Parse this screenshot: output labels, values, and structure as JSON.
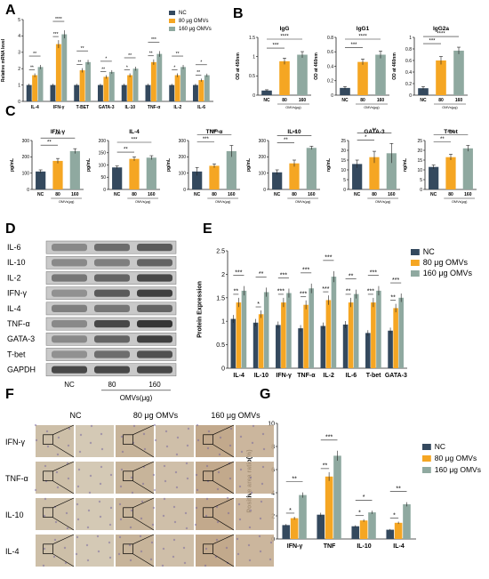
{
  "panels": [
    "A",
    "B",
    "C",
    "D",
    "E",
    "F",
    "G"
  ],
  "colors": {
    "nc": "#34495e",
    "d80": "#f5a623",
    "d160": "#8fa9a0",
    "axis": "#222222"
  },
  "chart_data": [
    {
      "id": "A",
      "type": "bar",
      "ylabel": "Relative mRNA level",
      "ylim": [
        0,
        5
      ],
      "yticks": [
        0,
        1,
        2,
        3,
        4,
        5
      ],
      "categories": [
        "IL-4",
        "IFN-γ",
        "T-BET",
        "GATA-3",
        "IL-10",
        "TNF-α",
        "IL-2",
        "IL-6"
      ],
      "series": [
        {
          "name": "NC",
          "values": [
            1.0,
            1.0,
            1.0,
            1.0,
            1.0,
            1.0,
            1.0,
            1.0
          ]
        },
        {
          "name": "80 μg OMVs",
          "values": [
            1.6,
            3.5,
            1.9,
            1.5,
            1.6,
            2.4,
            1.6,
            1.3
          ]
        },
        {
          "name": "160 μg OMVs",
          "values": [
            2.1,
            4.1,
            2.4,
            1.8,
            2.0,
            2.9,
            2.1,
            1.6
          ]
        }
      ],
      "sig_top": [
        "**",
        "****",
        "**",
        "*",
        "**",
        "***",
        "**",
        "*"
      ],
      "sig_mid": [
        "**",
        "***",
        "**",
        "**",
        "*",
        "**",
        "*",
        "**"
      ],
      "legend_position": "top-right"
    },
    {
      "id": "B1",
      "type": "bar",
      "title": "IgG",
      "ylabel": "OD at 450nm",
      "ylim": [
        0,
        1.5
      ],
      "yticks": [
        0.0,
        0.5,
        1.0,
        1.5
      ],
      "categories": [
        "NC",
        "80",
        "160"
      ],
      "group_label": "OMVs(μg)",
      "values": [
        0.12,
        0.88,
        1.05
      ],
      "errors": [
        0.02,
        0.08,
        0.08
      ],
      "sig": [
        {
          "a": 0,
          "b": 1,
          "s": "***"
        },
        {
          "a": 0,
          "b": 2,
          "s": "****"
        }
      ]
    },
    {
      "id": "B2",
      "type": "bar",
      "title": "IgG1",
      "ylabel": "OD at 460nm",
      "ylim": [
        0,
        0.8
      ],
      "yticks": [
        0.0,
        0.2,
        0.4,
        0.6,
        0.8
      ],
      "categories": [
        "NC",
        "80",
        "160"
      ],
      "group_label": "OMVs(μg)",
      "values": [
        0.1,
        0.46,
        0.56
      ],
      "errors": [
        0.02,
        0.04,
        0.05
      ],
      "sig": [
        {
          "a": 0,
          "b": 1,
          "s": "***"
        },
        {
          "a": 0,
          "b": 2,
          "s": "****"
        }
      ]
    },
    {
      "id": "B3",
      "type": "bar",
      "title": "IgG2a",
      "ylabel": "OD at 460nm",
      "ylim": [
        0,
        1.0
      ],
      "yticks": [
        0.0,
        0.2,
        0.4,
        0.6,
        0.8,
        1.0
      ],
      "categories": [
        "NC",
        "80",
        "160"
      ],
      "group_label": "OMVs(μg)",
      "values": [
        0.12,
        0.6,
        0.77
      ],
      "errors": [
        0.03,
        0.07,
        0.06
      ],
      "sig": [
        {
          "a": 0,
          "b": 1,
          "s": "***"
        },
        {
          "a": 0,
          "b": 2,
          "s": "****"
        }
      ]
    },
    {
      "id": "C1",
      "type": "bar",
      "title": "IFN-γ",
      "ylabel": "pg/mL",
      "ylim": [
        0,
        300
      ],
      "yticks": [
        0,
        100,
        200,
        300
      ],
      "categories": [
        "NC",
        "80",
        "160"
      ],
      "group_label": "OMVs(μg)",
      "values": [
        110,
        175,
        235
      ],
      "errors": [
        10,
        15,
        15
      ],
      "sig": [
        {
          "a": 0,
          "b": 1,
          "s": "**"
        },
        {
          "a": 0,
          "b": 2,
          "s": "***"
        }
      ]
    },
    {
      "id": "C2",
      "type": "bar",
      "title": "IL-4",
      "ylabel": "pg/mL",
      "ylim": [
        0,
        200
      ],
      "yticks": [
        0,
        50,
        100,
        150,
        200
      ],
      "categories": [
        "NC",
        "80",
        "160"
      ],
      "group_label": "OMVs(μg)",
      "values": [
        90,
        125,
        130
      ],
      "errors": [
        6,
        8,
        8
      ],
      "sig": [
        {
          "a": 0,
          "b": 1,
          "s": "**"
        },
        {
          "a": 0,
          "b": 2,
          "s": "***"
        }
      ]
    },
    {
      "id": "C3",
      "type": "bar",
      "title": "TNF-α",
      "ylabel": "pg/mL",
      "ylim": [
        0,
        300
      ],
      "yticks": [
        0,
        100,
        200,
        300
      ],
      "categories": [
        "NC",
        "80",
        "160"
      ],
      "group_label": "OMVs(μg)",
      "values": [
        110,
        145,
        235
      ],
      "errors": [
        25,
        12,
        35
      ],
      "sig": [
        {
          "a": 0,
          "b": 1,
          "s": "***"
        },
        {
          "a": 0,
          "b": 2,
          "s": "****"
        }
      ]
    },
    {
      "id": "C4",
      "type": "bar",
      "title": "IL-10",
      "ylabel": "pg/mL",
      "ylim": [
        0,
        300
      ],
      "yticks": [
        0,
        100,
        200,
        300
      ],
      "categories": [
        "NC",
        "80",
        "160"
      ],
      "group_label": "OMVs(μg)",
      "values": [
        105,
        160,
        255
      ],
      "errors": [
        15,
        20,
        10
      ],
      "sig": [
        {
          "a": 0,
          "b": 1,
          "s": "**"
        },
        {
          "a": 0,
          "b": 2,
          "s": "**"
        }
      ]
    },
    {
      "id": "C5",
      "type": "bar",
      "title": "GATA-3",
      "ylabel": "ng/mL",
      "ylim": [
        0,
        25
      ],
      "yticks": [
        0,
        5,
        10,
        15,
        20,
        25
      ],
      "categories": [
        "NC",
        "80",
        "160"
      ],
      "group_label": "OMVs(μg)",
      "values": [
        13,
        16.5,
        18.5
      ],
      "errors": [
        2,
        3,
        5
      ],
      "sig": [
        {
          "a": 0,
          "b": 1,
          "s": "*"
        },
        {
          "a": 0,
          "b": 2,
          "s": "**"
        }
      ]
    },
    {
      "id": "C6",
      "type": "bar",
      "title": "T-bet",
      "ylabel": "ng/mL",
      "ylim": [
        0,
        25
      ],
      "yticks": [
        0,
        5,
        10,
        15,
        20,
        25
      ],
      "categories": [
        "NC",
        "80",
        "160"
      ],
      "group_label": "OMVs(μg)",
      "values": [
        11.5,
        16.5,
        21
      ],
      "errors": [
        1,
        1.5,
        1.5
      ],
      "sig": [
        {
          "a": 0,
          "b": 1,
          "s": "**"
        },
        {
          "a": 0,
          "b": 2,
          "s": "***"
        }
      ]
    },
    {
      "id": "E",
      "type": "bar",
      "ylabel": "Protein Expression",
      "ylim": [
        0,
        2.5
      ],
      "yticks": [
        0.0,
        0.5,
        1.0,
        1.5,
        2.0,
        2.5
      ],
      "categories": [
        "IL-4",
        "IL-10",
        "IFN-γ",
        "TNF-α",
        "IL-2",
        "IL-6",
        "T-bet",
        "GATA-3"
      ],
      "series": [
        {
          "name": "NC",
          "values": [
            1.05,
            0.97,
            0.92,
            0.85,
            0.9,
            0.93,
            0.75,
            0.8
          ]
        },
        {
          "name": "80 μg OMVs",
          "values": [
            1.4,
            1.15,
            1.4,
            1.35,
            1.45,
            1.4,
            1.4,
            1.28
          ]
        },
        {
          "name": "160 μg OMVs",
          "values": [
            1.65,
            1.62,
            1.6,
            1.7,
            1.95,
            1.58,
            1.65,
            1.5
          ]
        }
      ],
      "sig_top": [
        "***",
        "**",
        "***",
        "***",
        "***",
        "**",
        "***",
        "***"
      ],
      "sig_mid": [
        "**",
        "*",
        "***",
        "***",
        "***",
        "**",
        "***",
        "**"
      ],
      "sig_low": [
        "",
        "",
        "**",
        "**",
        "**",
        "",
        "***",
        ""
      ],
      "legend_position": "top-right"
    },
    {
      "id": "G",
      "type": "bar",
      "ylabel": "Positive area ratio(%)",
      "ylim": [
        0,
        10
      ],
      "yticks": [
        0,
        2,
        4,
        6,
        8,
        10
      ],
      "categories": [
        "IFN-γ",
        "TNF",
        "IL-10",
        "IL-4"
      ],
      "series": [
        {
          "name": "NC",
          "values": [
            1.2,
            2.1,
            1.1,
            0.8
          ]
        },
        {
          "name": "80 μg OMVs",
          "values": [
            1.8,
            5.4,
            1.6,
            1.4
          ]
        },
        {
          "name": "160 μg OMVs",
          "values": [
            3.8,
            7.2,
            2.3,
            3.0
          ]
        }
      ],
      "sig_top": [
        "**",
        "***",
        "*",
        "**"
      ],
      "sig_mid": [
        "*",
        "**",
        "*",
        "*"
      ],
      "legend_position": "top-right"
    }
  ],
  "blot": {
    "labels": [
      "IL-6",
      "IL-10",
      "IL-2",
      "IFN-γ",
      "IL-4",
      "TNF-α",
      "GATA-3",
      "T-bet",
      "GAPDH"
    ],
    "lanes": [
      "NC",
      "80",
      "160"
    ],
    "group_label": "OMVs(μg)"
  },
  "histology": {
    "columns": [
      "NC",
      "80 μg OMVs",
      "160 μg OMVs"
    ],
    "rows": [
      "IFN-γ",
      "TNF-α",
      "IL-10",
      "IL-4"
    ]
  }
}
